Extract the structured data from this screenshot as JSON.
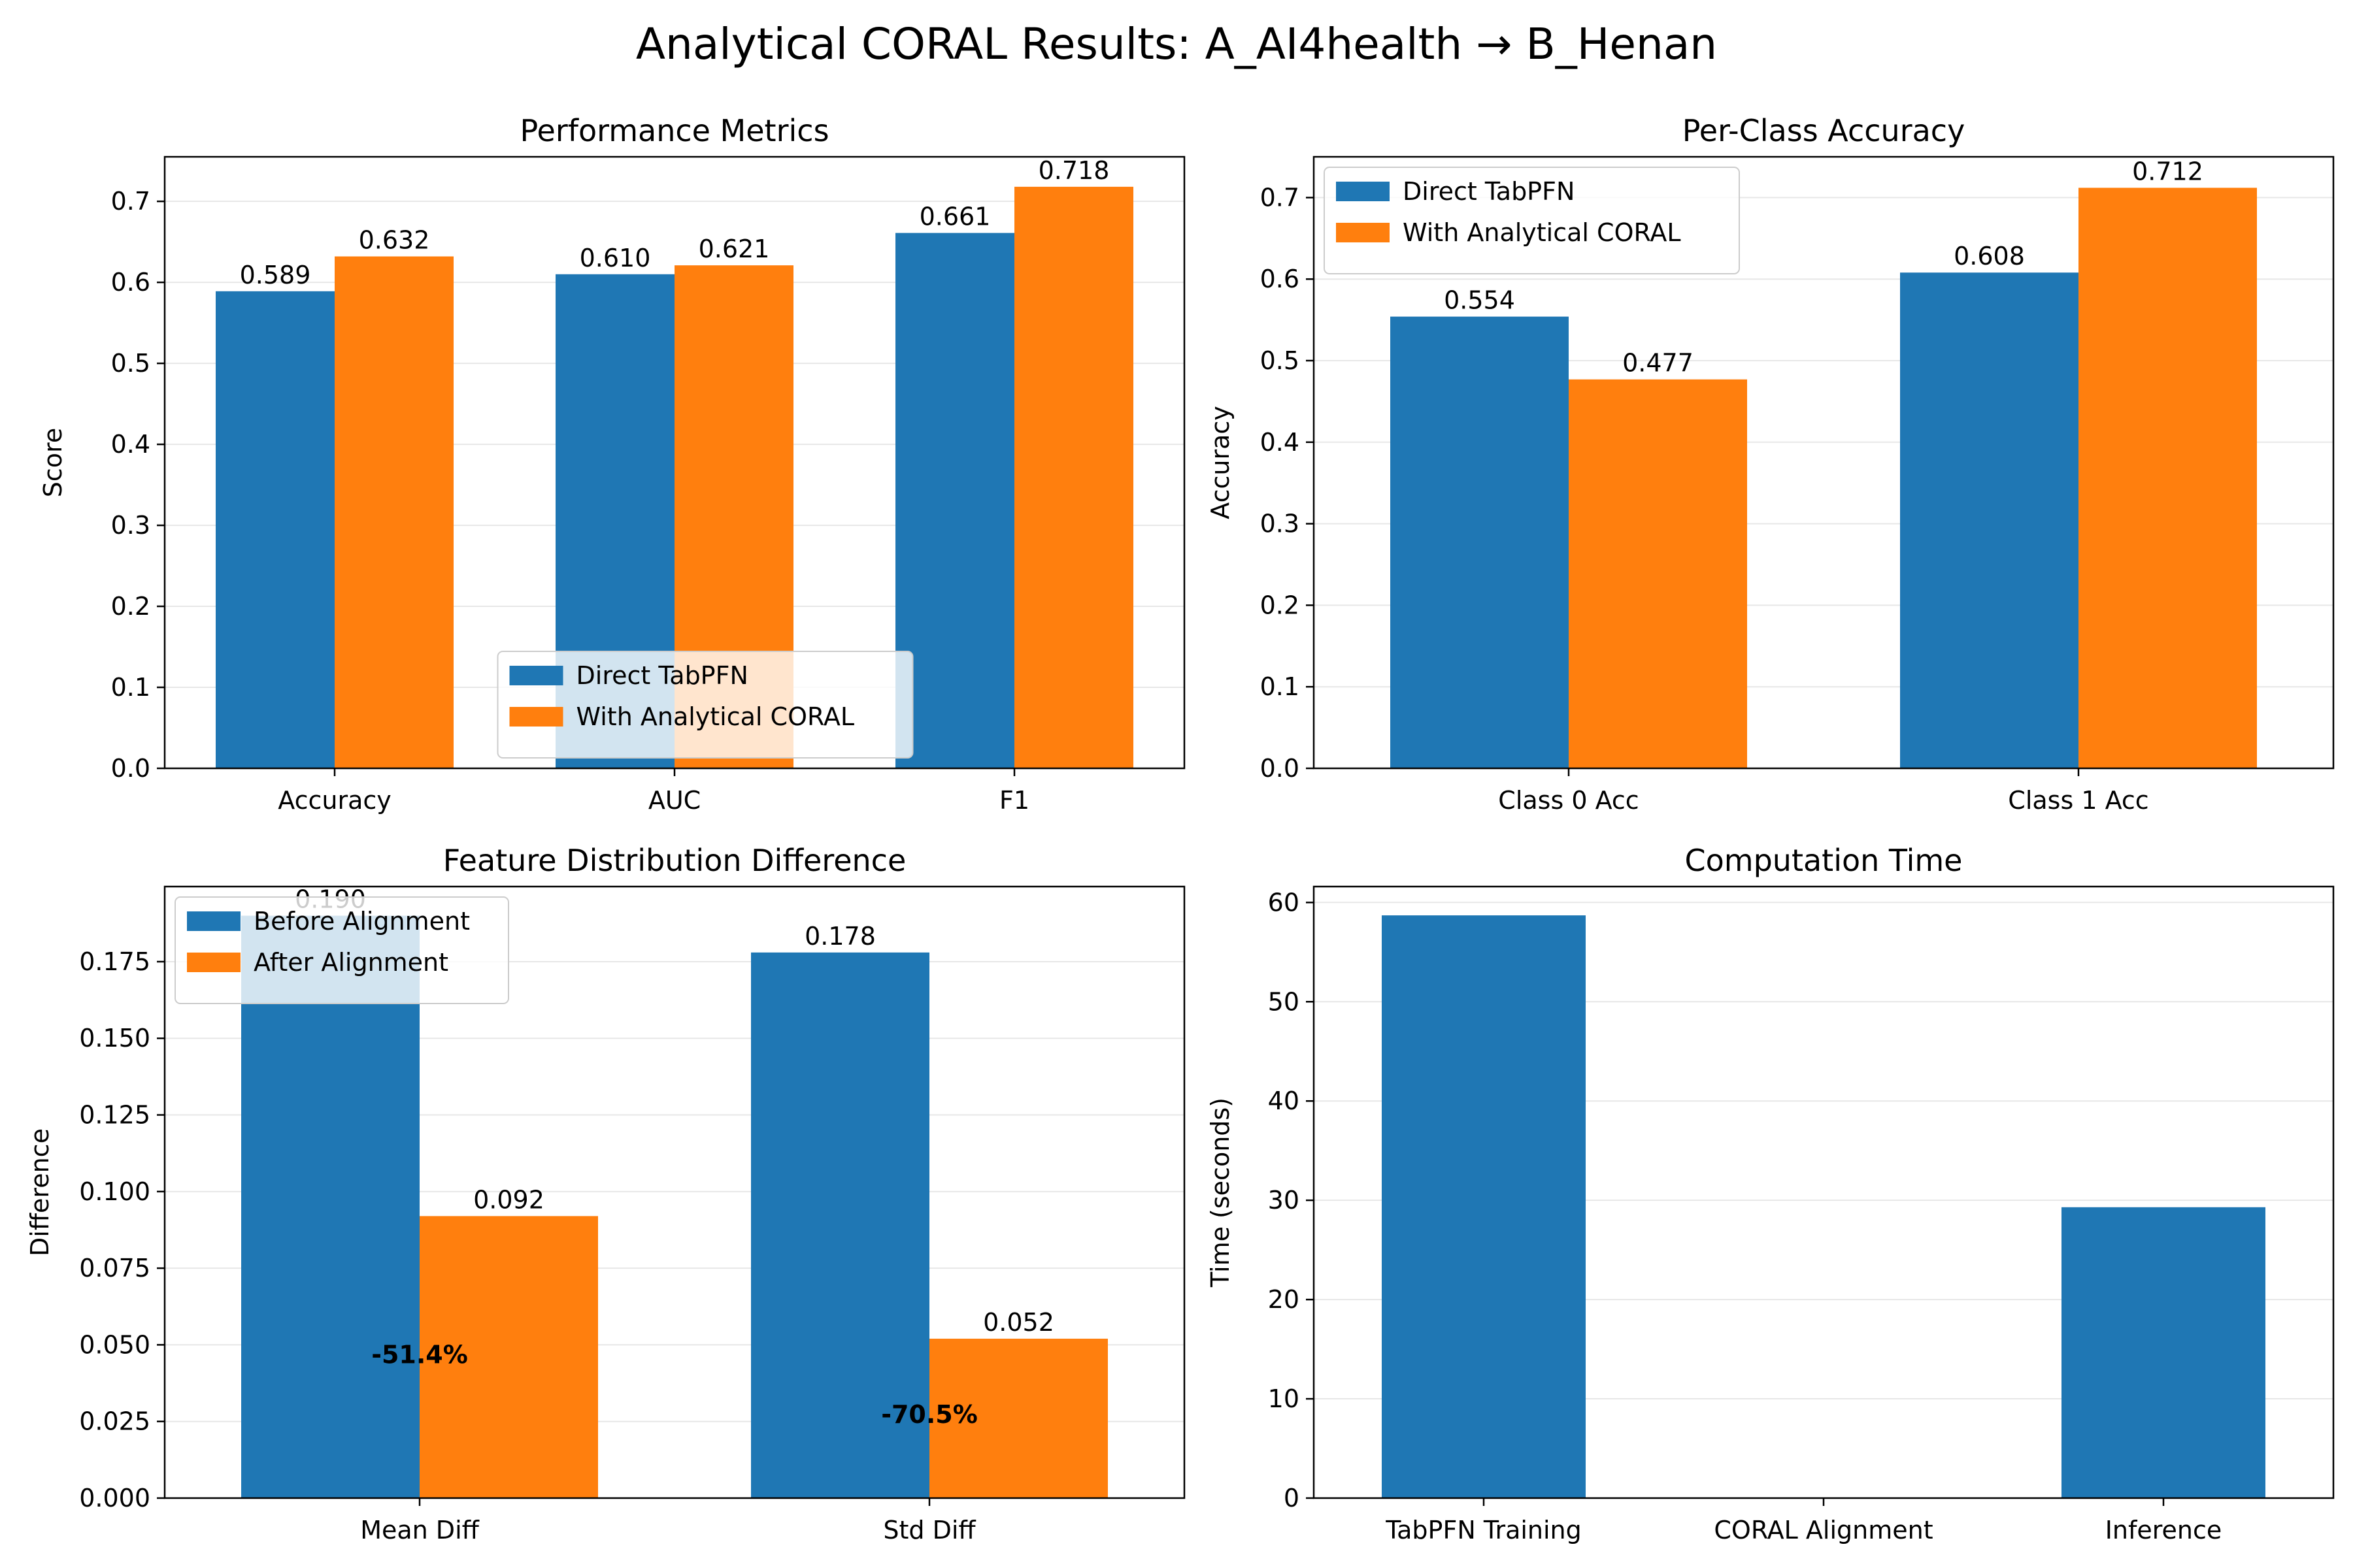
{
  "figure": {
    "title": "Analytical CORAL Results: A_AI4health → B_Henan"
  },
  "chart_data": [
    {
      "type": "bar",
      "title": "Performance Metrics",
      "xlabel": "",
      "ylabel": "Score",
      "categories": [
        "Accuracy",
        "AUC",
        "F1"
      ],
      "series": [
        {
          "name": "Direct TabPFN",
          "values": [
            0.589,
            0.61,
            0.661
          ],
          "labels": [
            "0.589",
            "0.610",
            "0.661"
          ],
          "color": "#1f77b4"
        },
        {
          "name": "With Analytical CORAL",
          "values": [
            0.632,
            0.621,
            0.718
          ],
          "labels": [
            "0.632",
            "0.621",
            "0.718"
          ],
          "color": "#ff7f0e"
        }
      ],
      "ylim": [
        0,
        0.755
      ],
      "yticks": [
        0.0,
        0.1,
        0.2,
        0.3,
        0.4,
        0.5,
        0.6,
        0.7
      ],
      "ytick_labels": [
        "0.0",
        "0.1",
        "0.2",
        "0.3",
        "0.4",
        "0.5",
        "0.6",
        "0.7"
      ],
      "grid": "y",
      "legend": "lower center",
      "annotations": []
    },
    {
      "type": "bar",
      "title": "Per-Class Accuracy",
      "xlabel": "",
      "ylabel": "Accuracy",
      "categories": [
        "Class 0 Acc",
        "Class 1 Acc"
      ],
      "series": [
        {
          "name": "Direct TabPFN",
          "values": [
            0.554,
            0.608
          ],
          "labels": [
            "0.554",
            "0.608"
          ],
          "color": "#1f77b4"
        },
        {
          "name": "With Analytical CORAL",
          "values": [
            0.477,
            0.712
          ],
          "labels": [
            "0.477",
            "0.712"
          ],
          "color": "#ff7f0e"
        }
      ],
      "ylim": [
        0,
        0.75
      ],
      "yticks": [
        0.0,
        0.1,
        0.2,
        0.3,
        0.4,
        0.5,
        0.6,
        0.7
      ],
      "ytick_labels": [
        "0.0",
        "0.1",
        "0.2",
        "0.3",
        "0.4",
        "0.5",
        "0.6",
        "0.7"
      ],
      "grid": "y",
      "legend": "upper left",
      "annotations": []
    },
    {
      "type": "bar",
      "title": "Feature Distribution Difference",
      "xlabel": "",
      "ylabel": "Difference",
      "categories": [
        "Mean Diff",
        "Std Diff"
      ],
      "series": [
        {
          "name": "Before Alignment",
          "values": [
            0.19,
            0.178
          ],
          "labels": [
            "0.190",
            "0.178"
          ],
          "color": "#1f77b4"
        },
        {
          "name": "After Alignment",
          "values": [
            0.092,
            0.052
          ],
          "labels": [
            "0.092",
            "0.052"
          ],
          "color": "#ff7f0e"
        }
      ],
      "ylim": [
        0,
        0.1995
      ],
      "yticks": [
        0.0,
        0.025,
        0.05,
        0.075,
        0.1,
        0.125,
        0.15,
        0.175
      ],
      "ytick_labels": [
        "0.000",
        "0.025",
        "0.050",
        "0.075",
        "0.100",
        "0.125",
        "0.150",
        "0.175"
      ],
      "grid": "y",
      "legend": "upper left",
      "annotations": [
        {
          "text": "-51.4%",
          "category": 0,
          "y": 0.047
        },
        {
          "text": "-70.5%",
          "category": 1,
          "y": 0.0275
        }
      ]
    },
    {
      "type": "bar",
      "title": "Computation Time",
      "xlabel": "",
      "ylabel": "Time (seconds)",
      "categories": [
        "TabPFN Training",
        "CORAL Alignment",
        "Inference"
      ],
      "series": [
        {
          "name": "",
          "values": [
            58.7,
            0.003,
            29.3
          ],
          "labels": [],
          "color": "#1f77b4"
        }
      ],
      "ylim": [
        0,
        61.6
      ],
      "yticks": [
        0,
        10,
        20,
        30,
        40,
        50,
        60
      ],
      "ytick_labels": [
        "0",
        "10",
        "20",
        "30",
        "40",
        "50",
        "60"
      ],
      "grid": "y",
      "legend": "none",
      "annotations": []
    }
  ]
}
